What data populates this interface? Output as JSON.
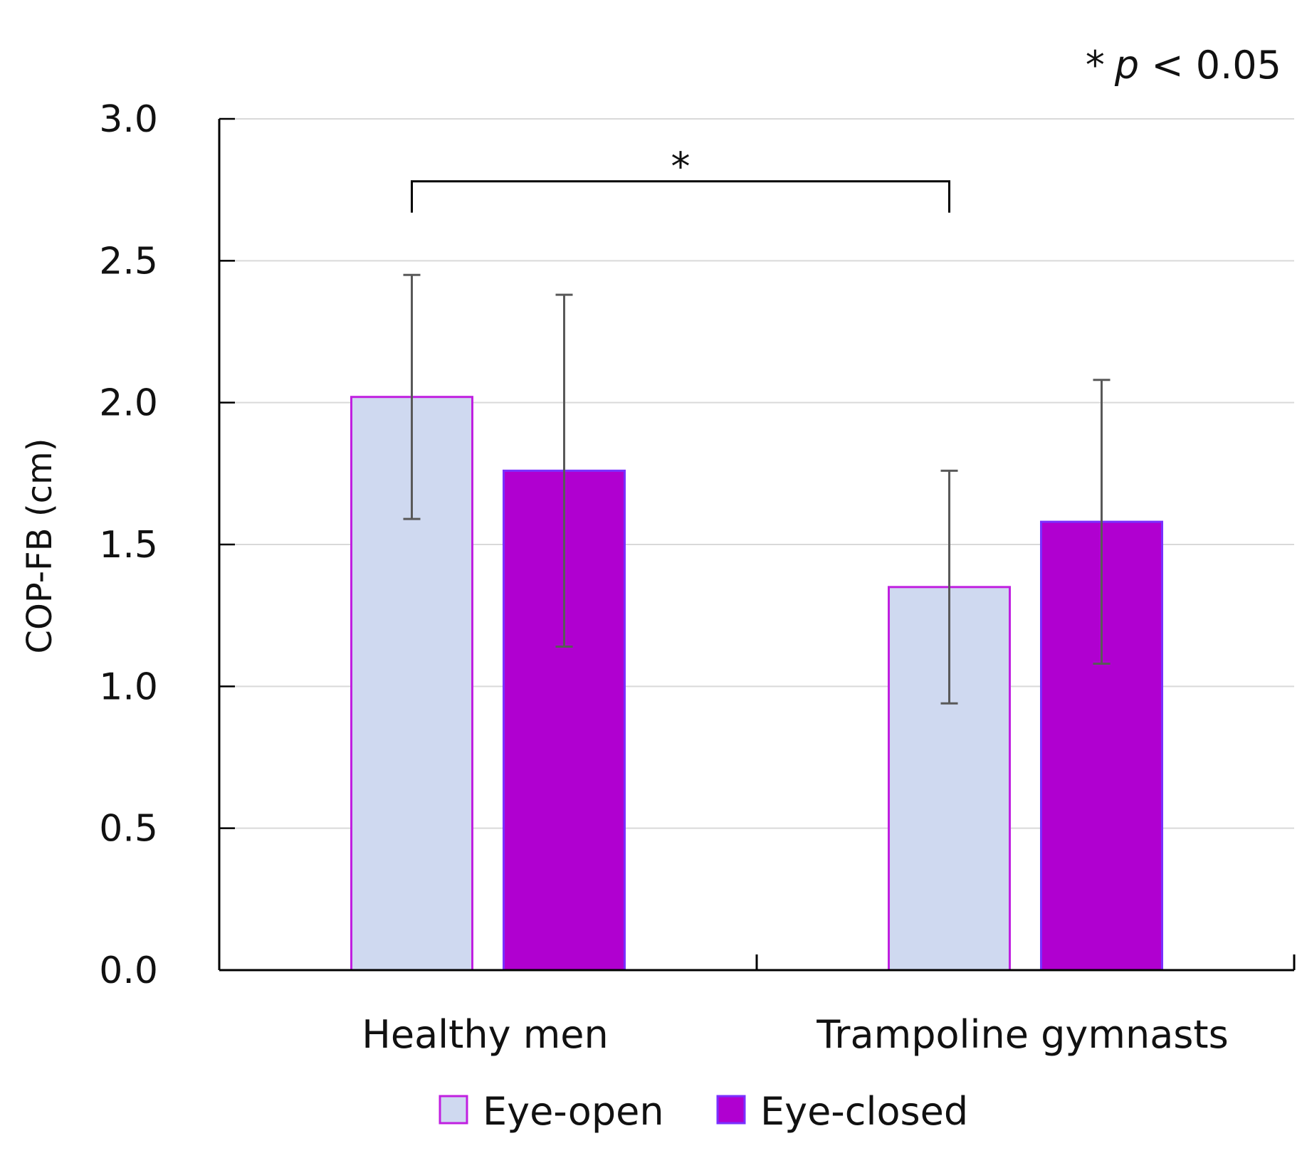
{
  "chart_data": {
    "type": "bar",
    "categories": [
      "Healthy men",
      "Trampoline gymnasts"
    ],
    "series": [
      {
        "name": "Eye-open",
        "values": [
          2.02,
          1.35
        ],
        "error": [
          0.43,
          0.41
        ],
        "fill": "#cfd9f0",
        "stroke": "#c020e0"
      },
      {
        "name": "Eye-closed",
        "values": [
          1.76,
          1.58
        ],
        "error": [
          0.62,
          0.5
        ],
        "fill": "#b000d0",
        "stroke": "#7a30ff"
      }
    ],
    "ylabel": "COP-FB (cm)",
    "xlabel": "",
    "ylim": [
      0,
      3.0
    ],
    "yticks": [
      "0.0",
      "0.5",
      "1.0",
      "1.5",
      "2.0",
      "2.5",
      "3.0"
    ],
    "grid": true,
    "legend_position": "bottom-center",
    "significance": {
      "from": "Healthy men",
      "to": "Trampoline gymnasts",
      "value": 2.78,
      "marker": "*"
    },
    "note": {
      "star": "*",
      "p": "p",
      "rest": " < 0.05"
    },
    "colors": {
      "grid": "#d9d9d9",
      "axis": "#000000",
      "errorbar": "#595959"
    }
  }
}
